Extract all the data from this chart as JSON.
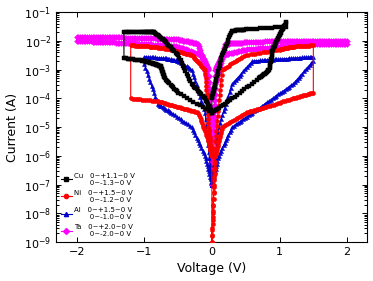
{
  "title": "",
  "xlabel": "Voltage (V)",
  "ylabel": "Current (A)",
  "xlim": [
    -2.3,
    2.3
  ],
  "ylim_log": [
    -9,
    -1
  ],
  "background_color": "#ffffff",
  "cu_color": "#000000",
  "ni_color": "#ff0000",
  "al_color": "#0000cc",
  "ta_color": "#ff00ff",
  "marker_size": 3.0,
  "tick_labelsize": 8,
  "axis_labelsize": 9
}
